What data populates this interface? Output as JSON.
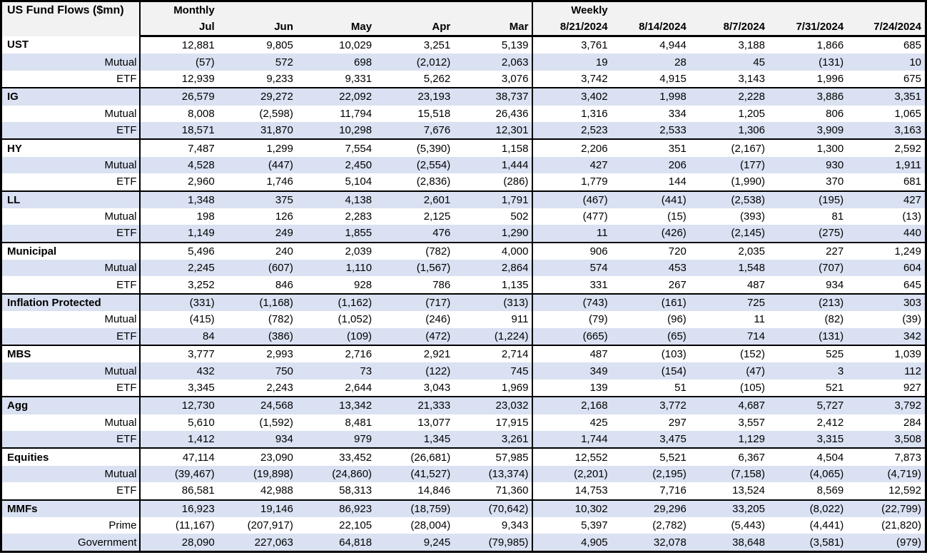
{
  "colors": {
    "stripe": "#d9e1f2",
    "header_bg": "#f2f2f2",
    "border": "#000000",
    "text": "#000000"
  },
  "chart_data": {
    "type": "table",
    "title": "US Fund Flows ($mn)",
    "column_groups": [
      {
        "label": "Monthly",
        "columns": [
          "Jul",
          "Jun",
          "May",
          "Apr",
          "Mar"
        ]
      },
      {
        "label": "Weekly",
        "columns": [
          "8/21/2024",
          "8/14/2024",
          "8/7/2024",
          "7/31/2024",
          "7/24/2024"
        ]
      }
    ],
    "sections": [
      {
        "rows": [
          {
            "label": "UST",
            "style": "category",
            "monthly": [
              "12,881",
              "9,805",
              "10,029",
              "3,251",
              "5,139"
            ],
            "weekly": [
              "3,761",
              "4,944",
              "3,188",
              "1,866",
              "685"
            ]
          },
          {
            "label": "Mutual",
            "style": "sub",
            "monthly": [
              "(57)",
              "572",
              "698",
              "(2,012)",
              "2,063"
            ],
            "weekly": [
              "19",
              "28",
              "45",
              "(131)",
              "10"
            ]
          },
          {
            "label": "ETF",
            "style": "sub",
            "monthly": [
              "12,939",
              "9,233",
              "9,331",
              "5,262",
              "3,076"
            ],
            "weekly": [
              "3,742",
              "4,915",
              "3,143",
              "1,996",
              "675"
            ]
          }
        ]
      },
      {
        "rows": [
          {
            "label": "IG",
            "style": "category",
            "monthly": [
              "26,579",
              "29,272",
              "22,092",
              "23,193",
              "38,737"
            ],
            "weekly": [
              "3,402",
              "1,998",
              "2,228",
              "3,886",
              "3,351"
            ]
          },
          {
            "label": "Mutual",
            "style": "sub",
            "monthly": [
              "8,008",
              "(2,598)",
              "11,794",
              "15,518",
              "26,436"
            ],
            "weekly": [
              "1,316",
              "334",
              "1,205",
              "806",
              "1,065"
            ]
          },
          {
            "label": "ETF",
            "style": "sub",
            "monthly": [
              "18,571",
              "31,870",
              "10,298",
              "7,676",
              "12,301"
            ],
            "weekly": [
              "2,523",
              "2,533",
              "1,306",
              "3,909",
              "3,163"
            ]
          }
        ]
      },
      {
        "rows": [
          {
            "label": "HY",
            "style": "category",
            "monthly": [
              "7,487",
              "1,299",
              "7,554",
              "(5,390)",
              "1,158"
            ],
            "weekly": [
              "2,206",
              "351",
              "(2,167)",
              "1,300",
              "2,592"
            ]
          },
          {
            "label": "Mutual",
            "style": "sub",
            "monthly": [
              "4,528",
              "(447)",
              "2,450",
              "(2,554)",
              "1,444"
            ],
            "weekly": [
              "427",
              "206",
              "(177)",
              "930",
              "1,911"
            ]
          },
          {
            "label": "ETF",
            "style": "sub",
            "monthly": [
              "2,960",
              "1,746",
              "5,104",
              "(2,836)",
              "(286)"
            ],
            "weekly": [
              "1,779",
              "144",
              "(1,990)",
              "370",
              "681"
            ]
          }
        ]
      },
      {
        "rows": [
          {
            "label": "LL",
            "style": "category",
            "monthly": [
              "1,348",
              "375",
              "4,138",
              "2,601",
              "1,791"
            ],
            "weekly": [
              "(467)",
              "(441)",
              "(2,538)",
              "(195)",
              "427"
            ]
          },
          {
            "label": "Mutual",
            "style": "sub",
            "monthly": [
              "198",
              "126",
              "2,283",
              "2,125",
              "502"
            ],
            "weekly": [
              "(477)",
              "(15)",
              "(393)",
              "81",
              "(13)"
            ]
          },
          {
            "label": "ETF",
            "style": "sub",
            "monthly": [
              "1,149",
              "249",
              "1,855",
              "476",
              "1,290"
            ],
            "weekly": [
              "11",
              "(426)",
              "(2,145)",
              "(275)",
              "440"
            ]
          }
        ]
      },
      {
        "rows": [
          {
            "label": "Municipal",
            "style": "category",
            "monthly": [
              "5,496",
              "240",
              "2,039",
              "(782)",
              "4,000"
            ],
            "weekly": [
              "906",
              "720",
              "2,035",
              "227",
              "1,249"
            ]
          },
          {
            "label": "Mutual",
            "style": "sub",
            "monthly": [
              "2,245",
              "(607)",
              "1,110",
              "(1,567)",
              "2,864"
            ],
            "weekly": [
              "574",
              "453",
              "1,548",
              "(707)",
              "604"
            ]
          },
          {
            "label": "ETF",
            "style": "sub",
            "monthly": [
              "3,252",
              "846",
              "928",
              "786",
              "1,135"
            ],
            "weekly": [
              "331",
              "267",
              "487",
              "934",
              "645"
            ]
          }
        ]
      },
      {
        "rows": [
          {
            "label": "Inflation Protected",
            "style": "category",
            "monthly": [
              "(331)",
              "(1,168)",
              "(1,162)",
              "(717)",
              "(313)"
            ],
            "weekly": [
              "(743)",
              "(161)",
              "725",
              "(213)",
              "303"
            ]
          },
          {
            "label": "Mutual",
            "style": "sub",
            "monthly": [
              "(415)",
              "(782)",
              "(1,052)",
              "(246)",
              "911"
            ],
            "weekly": [
              "(79)",
              "(96)",
              "11",
              "(82)",
              "(39)"
            ]
          },
          {
            "label": "ETF",
            "style": "sub",
            "monthly": [
              "84",
              "(386)",
              "(109)",
              "(472)",
              "(1,224)"
            ],
            "weekly": [
              "(665)",
              "(65)",
              "714",
              "(131)",
              "342"
            ]
          }
        ]
      },
      {
        "rows": [
          {
            "label": "MBS",
            "style": "category",
            "monthly": [
              "3,777",
              "2,993",
              "2,716",
              "2,921",
              "2,714"
            ],
            "weekly": [
              "487",
              "(103)",
              "(152)",
              "525",
              "1,039"
            ]
          },
          {
            "label": "Mutual",
            "style": "sub",
            "monthly": [
              "432",
              "750",
              "73",
              "(122)",
              "745"
            ],
            "weekly": [
              "349",
              "(154)",
              "(47)",
              "3",
              "112"
            ]
          },
          {
            "label": "ETF",
            "style": "sub",
            "monthly": [
              "3,345",
              "2,243",
              "2,644",
              "3,043",
              "1,969"
            ],
            "weekly": [
              "139",
              "51",
              "(105)",
              "521",
              "927"
            ]
          }
        ]
      },
      {
        "rows": [
          {
            "label": "Agg",
            "style": "category",
            "monthly": [
              "12,730",
              "24,568",
              "13,342",
              "21,333",
              "23,032"
            ],
            "weekly": [
              "2,168",
              "3,772",
              "4,687",
              "5,727",
              "3,792"
            ]
          },
          {
            "label": "Mutual",
            "style": "sub",
            "monthly": [
              "5,610",
              "(1,592)",
              "8,481",
              "13,077",
              "17,915"
            ],
            "weekly": [
              "425",
              "297",
              "3,557",
              "2,412",
              "284"
            ]
          },
          {
            "label": "ETF",
            "style": "sub",
            "monthly": [
              "1,412",
              "934",
              "979",
              "1,345",
              "3,261"
            ],
            "weekly": [
              "1,744",
              "3,475",
              "1,129",
              "3,315",
              "3,508"
            ]
          }
        ]
      },
      {
        "rows": [
          {
            "label": "Equities",
            "style": "category",
            "monthly": [
              "47,114",
              "23,090",
              "33,452",
              "(26,681)",
              "57,985"
            ],
            "weekly": [
              "12,552",
              "5,521",
              "6,367",
              "4,504",
              "7,873"
            ]
          },
          {
            "label": "Mutual",
            "style": "sub",
            "monthly": [
              "(39,467)",
              "(19,898)",
              "(24,860)",
              "(41,527)",
              "(13,374)"
            ],
            "weekly": [
              "(2,201)",
              "(2,195)",
              "(7,158)",
              "(4,065)",
              "(4,719)"
            ]
          },
          {
            "label": "ETF",
            "style": "sub",
            "monthly": [
              "86,581",
              "42,988",
              "58,313",
              "14,846",
              "71,360"
            ],
            "weekly": [
              "14,753",
              "7,716",
              "13,524",
              "8,569",
              "12,592"
            ]
          }
        ]
      },
      {
        "rows": [
          {
            "label": "MMFs",
            "style": "category",
            "monthly": [
              "16,923",
              "19,146",
              "86,923",
              "(18,759)",
              "(70,642)"
            ],
            "weekly": [
              "10,302",
              "29,296",
              "33,205",
              "(8,022)",
              "(22,799)"
            ]
          },
          {
            "label": "Prime",
            "style": "sub",
            "monthly": [
              "(11,167)",
              "(207,917)",
              "22,105",
              "(28,004)",
              "9,343"
            ],
            "weekly": [
              "5,397",
              "(2,782)",
              "(5,443)",
              "(4,441)",
              "(21,820)"
            ]
          },
          {
            "label": "Government",
            "style": "sub",
            "monthly": [
              "28,090",
              "227,063",
              "64,818",
              "9,245",
              "(79,985)"
            ],
            "weekly": [
              "4,905",
              "32,078",
              "38,648",
              "(3,581)",
              "(979)"
            ]
          }
        ]
      }
    ]
  }
}
